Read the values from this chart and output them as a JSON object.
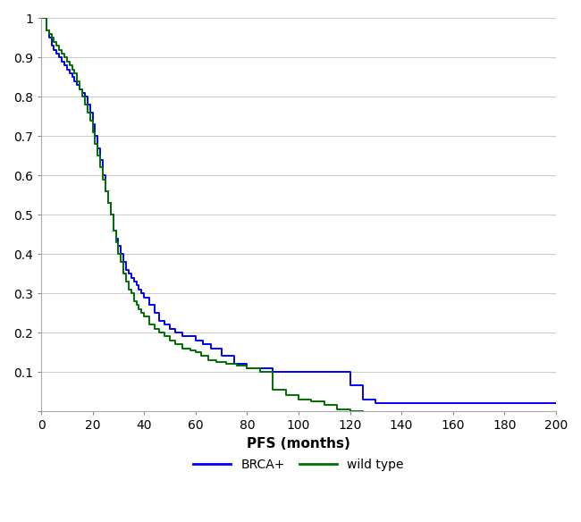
{
  "title": "",
  "xlabel": "PFS (months)",
  "ylabel": "",
  "xlim": [
    0,
    200
  ],
  "ylim": [
    0,
    1.0
  ],
  "xticks": [
    0,
    20,
    40,
    60,
    80,
    100,
    120,
    140,
    160,
    180,
    200
  ],
  "yticks": [
    0,
    0.1,
    0.2,
    0.3,
    0.4,
    0.5,
    0.6,
    0.7,
    0.8,
    0.9,
    1
  ],
  "brca_color": "#0000ff",
  "wt_color": "#007000",
  "brca_label": "BRCA+",
  "wt_label": "wild type",
  "linewidth": 1.4,
  "background_color": "#ffffff",
  "grid_color": "#cccccc",
  "tick_color": "#888888",
  "spine_color": "#aaaaaa",
  "font_size": 11,
  "legend_fontsize": 10,
  "brca_times": [
    0,
    2,
    3,
    4,
    5,
    6,
    7,
    8,
    9,
    10,
    11,
    12,
    13,
    14,
    15,
    16,
    17,
    18,
    19,
    20,
    21,
    22,
    23,
    24,
    25,
    26,
    27,
    28,
    29,
    30,
    31,
    32,
    33,
    34,
    35,
    36,
    37,
    38,
    39,
    40,
    42,
    44,
    46,
    48,
    50,
    52,
    55,
    58,
    60,
    63,
    66,
    70,
    75,
    80,
    90,
    100,
    105,
    110,
    115,
    120,
    125,
    130,
    200
  ],
  "brca_surv": [
    1.0,
    0.97,
    0.95,
    0.93,
    0.92,
    0.91,
    0.9,
    0.89,
    0.88,
    0.87,
    0.86,
    0.85,
    0.84,
    0.83,
    0.82,
    0.81,
    0.8,
    0.78,
    0.76,
    0.73,
    0.7,
    0.67,
    0.64,
    0.6,
    0.56,
    0.53,
    0.5,
    0.46,
    0.44,
    0.42,
    0.4,
    0.38,
    0.36,
    0.35,
    0.34,
    0.33,
    0.32,
    0.31,
    0.3,
    0.29,
    0.27,
    0.25,
    0.23,
    0.22,
    0.21,
    0.2,
    0.19,
    0.19,
    0.18,
    0.17,
    0.16,
    0.14,
    0.12,
    0.11,
    0.1,
    0.1,
    0.1,
    0.1,
    0.1,
    0.065,
    0.03,
    0.02,
    0.02
  ],
  "wt_times": [
    0,
    2,
    3,
    4,
    5,
    6,
    7,
    8,
    9,
    10,
    11,
    12,
    13,
    14,
    15,
    16,
    17,
    18,
    19,
    20,
    21,
    22,
    23,
    24,
    25,
    26,
    27,
    28,
    29,
    30,
    31,
    32,
    33,
    34,
    35,
    36,
    37,
    38,
    39,
    40,
    42,
    44,
    46,
    48,
    50,
    52,
    55,
    58,
    60,
    62,
    65,
    68,
    72,
    76,
    80,
    85,
    90,
    95,
    100,
    105,
    110,
    115,
    120,
    125
  ],
  "wt_surv": [
    1.0,
    0.97,
    0.96,
    0.95,
    0.94,
    0.93,
    0.92,
    0.91,
    0.9,
    0.89,
    0.88,
    0.87,
    0.86,
    0.84,
    0.82,
    0.8,
    0.78,
    0.76,
    0.74,
    0.71,
    0.68,
    0.65,
    0.62,
    0.59,
    0.56,
    0.53,
    0.5,
    0.46,
    0.43,
    0.4,
    0.38,
    0.35,
    0.33,
    0.31,
    0.3,
    0.28,
    0.27,
    0.26,
    0.25,
    0.24,
    0.22,
    0.21,
    0.2,
    0.19,
    0.18,
    0.17,
    0.16,
    0.155,
    0.15,
    0.14,
    0.13,
    0.125,
    0.12,
    0.115,
    0.11,
    0.1,
    0.055,
    0.04,
    0.03,
    0.025,
    0.015,
    0.005,
    0.0,
    0.0
  ]
}
